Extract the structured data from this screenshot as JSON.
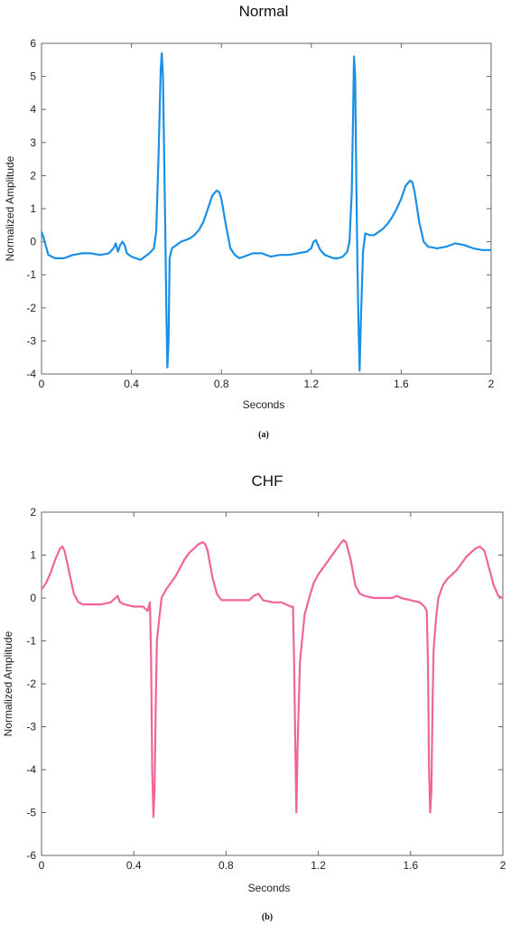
{
  "chart_data": [
    {
      "type": "line",
      "title": "Normal",
      "caption": "(a)",
      "xlabel": "Seconds",
      "ylabel": "Normalized Amplitude",
      "xlim": [
        0,
        2
      ],
      "ylim": [
        -4,
        6
      ],
      "xticks": [
        0,
        0.4,
        0.8,
        1.2,
        1.6,
        2
      ],
      "xtick_labels": [
        "0",
        "0.4",
        "0.8",
        "1.2",
        "1.6",
        "2"
      ],
      "yticks": [
        6,
        5,
        4,
        3,
        2,
        1,
        0,
        -1,
        -2,
        -3,
        -4
      ],
      "ytick_labels": [
        "6",
        "5",
        "4",
        "3",
        "2",
        "1",
        "0",
        "-1",
        "-2",
        "-3",
        "-4"
      ],
      "grid": false,
      "color": "#1a8fe6",
      "series": [
        {
          "x": [
            0.0,
            0.01,
            0.03,
            0.06,
            0.1,
            0.14,
            0.18,
            0.22,
            0.26,
            0.3,
            0.32,
            0.33,
            0.34,
            0.35,
            0.36,
            0.37,
            0.38,
            0.4,
            0.42,
            0.44,
            0.46,
            0.48,
            0.5,
            0.51,
            0.52,
            0.53,
            0.535,
            0.54,
            0.55,
            0.555,
            0.56,
            0.565,
            0.57,
            0.58,
            0.6,
            0.62,
            0.64,
            0.66,
            0.68,
            0.7,
            0.72,
            0.74,
            0.76,
            0.78,
            0.79,
            0.8,
            0.82,
            0.84,
            0.86,
            0.88,
            0.9,
            0.94,
            0.98,
            1.02,
            1.06,
            1.1,
            1.14,
            1.18,
            1.2,
            1.21,
            1.22,
            1.23,
            1.24,
            1.26,
            1.28,
            1.3,
            1.32,
            1.34,
            1.36,
            1.37,
            1.38,
            1.385,
            1.39,
            1.395,
            1.4,
            1.405,
            1.41,
            1.415,
            1.42,
            1.43,
            1.44,
            1.46,
            1.48,
            1.5,
            1.52,
            1.54,
            1.56,
            1.58,
            1.6,
            1.62,
            1.64,
            1.65,
            1.66,
            1.68,
            1.7,
            1.72,
            1.76,
            1.8,
            1.84,
            1.88,
            1.92,
            1.96,
            2.0
          ],
          "y": [
            0.3,
            0.1,
            -0.4,
            -0.5,
            -0.5,
            -0.4,
            -0.35,
            -0.35,
            -0.4,
            -0.35,
            -0.2,
            -0.05,
            -0.3,
            -0.1,
            0.0,
            -0.1,
            -0.35,
            -0.45,
            -0.5,
            -0.55,
            -0.45,
            -0.35,
            -0.2,
            0.3,
            2.5,
            5.2,
            5.7,
            5.0,
            0.5,
            -2.0,
            -3.8,
            -3.0,
            -0.5,
            -0.2,
            -0.1,
            0.0,
            0.05,
            0.1,
            0.2,
            0.35,
            0.6,
            1.0,
            1.4,
            1.55,
            1.5,
            1.3,
            0.5,
            -0.2,
            -0.4,
            -0.5,
            -0.45,
            -0.35,
            -0.35,
            -0.45,
            -0.4,
            -0.4,
            -0.35,
            -0.3,
            -0.2,
            0.0,
            0.05,
            -0.1,
            -0.25,
            -0.4,
            -0.45,
            -0.5,
            -0.5,
            -0.45,
            -0.3,
            0.0,
            1.5,
            3.5,
            5.6,
            5.0,
            2.0,
            -0.5,
            -2.5,
            -3.9,
            -2.5,
            -0.3,
            0.25,
            0.2,
            0.2,
            0.3,
            0.4,
            0.55,
            0.75,
            1.0,
            1.3,
            1.7,
            1.85,
            1.8,
            1.5,
            0.6,
            0.0,
            -0.15,
            -0.2,
            -0.15,
            -0.05,
            -0.1,
            -0.2,
            -0.25,
            -0.25
          ]
        }
      ]
    },
    {
      "type": "line",
      "title": "CHF",
      "caption": "(b)",
      "xlabel": "Seconds",
      "ylabel": "Normalized Amplitude",
      "xlim": [
        0,
        2
      ],
      "ylim": [
        -6,
        2
      ],
      "xticks": [
        0,
        0.4,
        0.8,
        1.2,
        1.6,
        2
      ],
      "xtick_labels": [
        "0",
        "0.4",
        "0.8",
        "1.2",
        "1.6",
        "2"
      ],
      "yticks": [
        2,
        1,
        0,
        -1,
        -2,
        -3,
        -4,
        -5,
        -6
      ],
      "ytick_labels": [
        "2",
        "1",
        "0",
        "-1",
        "-2",
        "-3",
        "-4",
        "-5",
        "-6"
      ],
      "grid": false,
      "color": "#f0649b",
      "series": [
        {
          "x": [
            0.0,
            0.02,
            0.04,
            0.06,
            0.08,
            0.09,
            0.1,
            0.12,
            0.14,
            0.16,
            0.18,
            0.22,
            0.26,
            0.3,
            0.32,
            0.33,
            0.34,
            0.36,
            0.4,
            0.44,
            0.46,
            0.47,
            0.475,
            0.48,
            0.485,
            0.49,
            0.495,
            0.5,
            0.51,
            0.52,
            0.54,
            0.56,
            0.58,
            0.6,
            0.62,
            0.64,
            0.66,
            0.68,
            0.7,
            0.71,
            0.72,
            0.74,
            0.76,
            0.78,
            0.82,
            0.86,
            0.9,
            0.92,
            0.94,
            0.96,
            1.0,
            1.04,
            1.06,
            1.08,
            1.09,
            1.095,
            1.1,
            1.105,
            1.11,
            1.12,
            1.14,
            1.16,
            1.18,
            1.2,
            1.22,
            1.24,
            1.26,
            1.28,
            1.3,
            1.31,
            1.32,
            1.34,
            1.36,
            1.38,
            1.4,
            1.44,
            1.48,
            1.52,
            1.54,
            1.56,
            1.6,
            1.64,
            1.66,
            1.67,
            1.675,
            1.68,
            1.685,
            1.69,
            1.695,
            1.7,
            1.71,
            1.72,
            1.74,
            1.76,
            1.78,
            1.8,
            1.82,
            1.84,
            1.86,
            1.88,
            1.9,
            1.91,
            1.92,
            1.94,
            1.96,
            1.98,
            2.0
          ],
          "y": [
            0.2,
            0.35,
            0.6,
            0.9,
            1.15,
            1.2,
            1.1,
            0.6,
            0.1,
            -0.1,
            -0.15,
            -0.15,
            -0.15,
            -0.1,
            0.0,
            0.05,
            -0.1,
            -0.15,
            -0.2,
            -0.2,
            -0.3,
            -0.1,
            -1.5,
            -4.0,
            -5.1,
            -4.5,
            -2.5,
            -1.0,
            -0.5,
            0.0,
            0.2,
            0.35,
            0.5,
            0.7,
            0.9,
            1.05,
            1.15,
            1.25,
            1.3,
            1.25,
            1.1,
            0.5,
            0.1,
            -0.05,
            -0.05,
            -0.05,
            -0.05,
            0.05,
            0.1,
            -0.05,
            -0.1,
            -0.1,
            -0.15,
            -0.2,
            -0.2,
            -1.5,
            -3.5,
            -5.0,
            -3.5,
            -1.5,
            -0.4,
            0.0,
            0.35,
            0.55,
            0.7,
            0.85,
            1.0,
            1.15,
            1.3,
            1.35,
            1.3,
            0.9,
            0.3,
            0.1,
            0.05,
            0.0,
            0.0,
            0.0,
            0.05,
            0.0,
            -0.05,
            -0.1,
            -0.2,
            -0.3,
            -1.5,
            -4.0,
            -5.0,
            -4.5,
            -2.5,
            -1.2,
            -0.5,
            0.0,
            0.3,
            0.45,
            0.55,
            0.65,
            0.8,
            0.95,
            1.05,
            1.15,
            1.2,
            1.15,
            1.1,
            0.7,
            0.3,
            0.05,
            0.0
          ]
        }
      ]
    }
  ]
}
